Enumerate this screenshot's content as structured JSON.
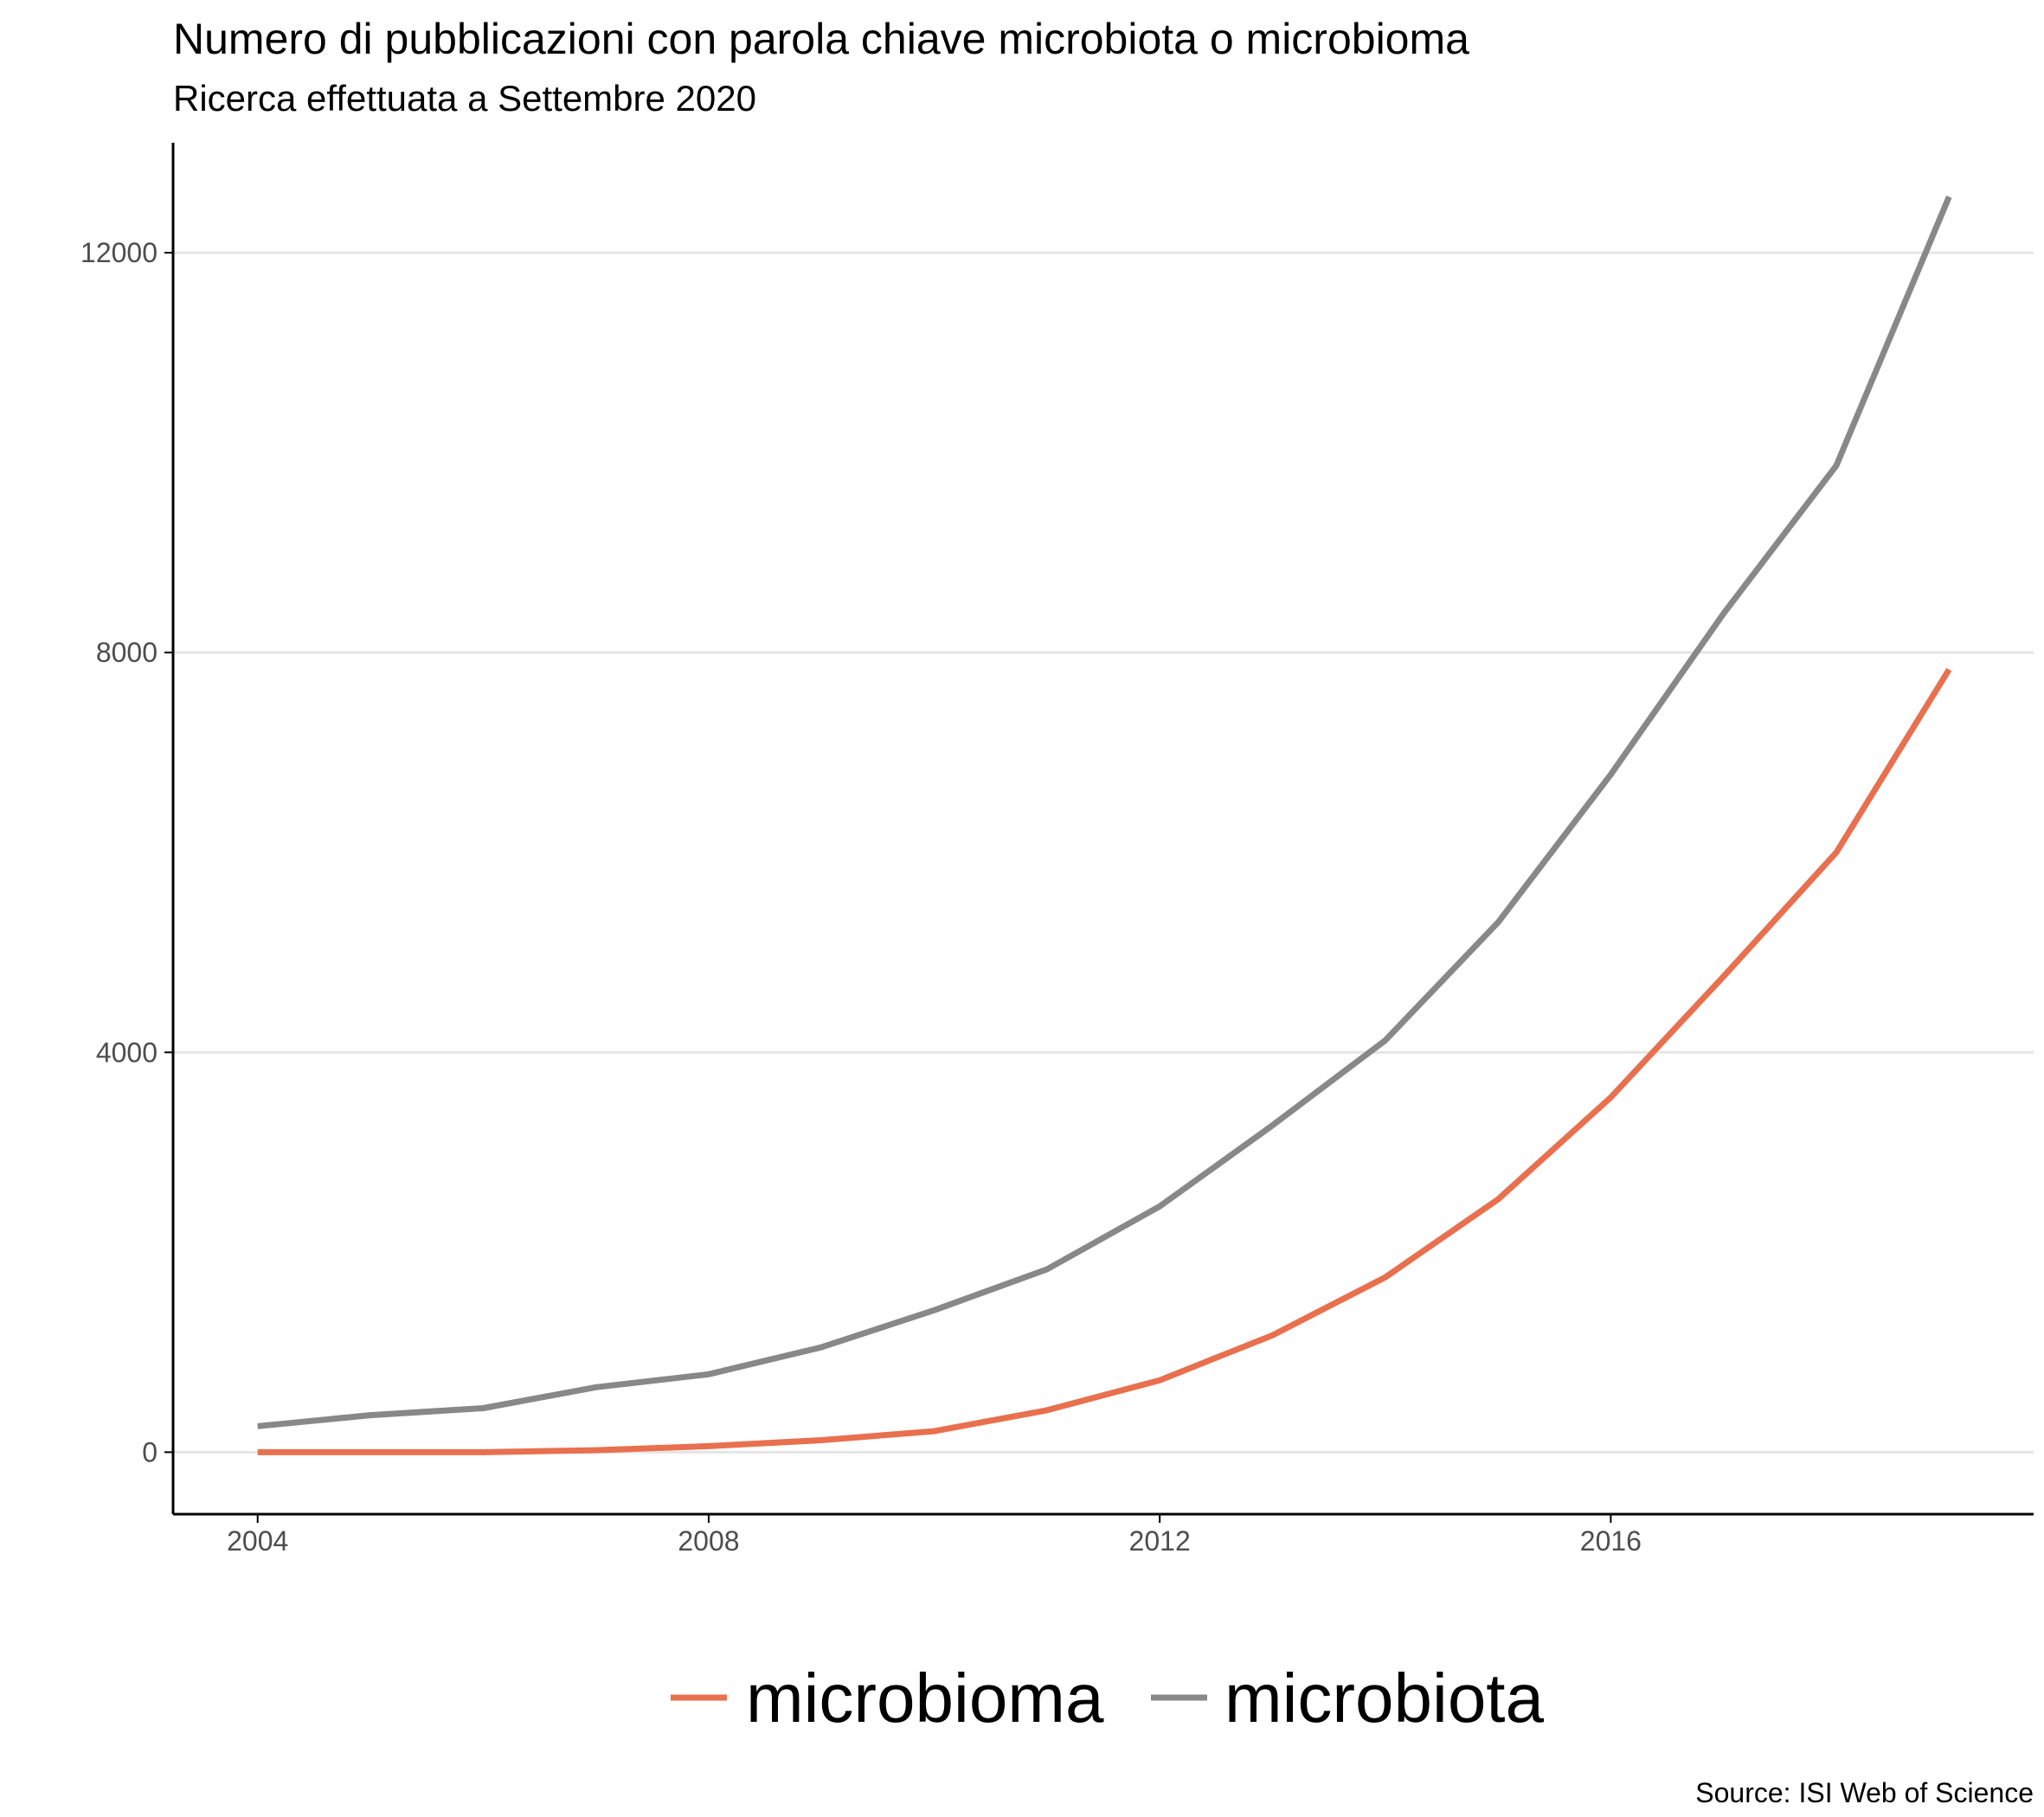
{
  "colors": {
    "microbioma": "#E8704F",
    "microbiota": "#888888",
    "gridline": "#e5e5e5",
    "axis": "#000000"
  },
  "chart_data": {
    "type": "line",
    "title": "Numero di pubblicazioni con parola chiave microbiota o microbioma",
    "subtitle": "Ricerca effettuata a Settembre 2020",
    "caption": "Source: ISI Web of Science",
    "xlabel": "",
    "ylabel": "",
    "x": [
      2004,
      2005,
      2006,
      2007,
      2008,
      2009,
      2010,
      2011,
      2012,
      2013,
      2014,
      2015,
      2016,
      2017,
      2018,
      2019
    ],
    "xlim": [
      2003.25,
      2019.75
    ],
    "ylim": [
      -620,
      13100
    ],
    "x_ticks": [
      2004,
      2008,
      2012,
      2016
    ],
    "x_tick_labels": [
      "2004",
      "2008",
      "2012",
      "2016"
    ],
    "y_ticks": [
      0,
      4000,
      8000,
      12000
    ],
    "y_tick_labels": [
      "0",
      "4000",
      "8000",
      "12000"
    ],
    "grid": "horizontal major",
    "legend_position": "bottom",
    "series": [
      {
        "name": "microbioma",
        "color_key": "microbioma",
        "values": [
          0,
          0,
          0,
          20,
          60,
          120,
          210,
          420,
          720,
          1170,
          1750,
          2530,
          3550,
          4760,
          6000,
          7830
        ]
      },
      {
        "name": "microbiota",
        "color_key": "microbiota",
        "values": [
          260,
          370,
          440,
          650,
          780,
          1050,
          1420,
          1830,
          2460,
          3270,
          4120,
          5300,
          6780,
          8390,
          9870,
          12560
        ]
      }
    ]
  }
}
